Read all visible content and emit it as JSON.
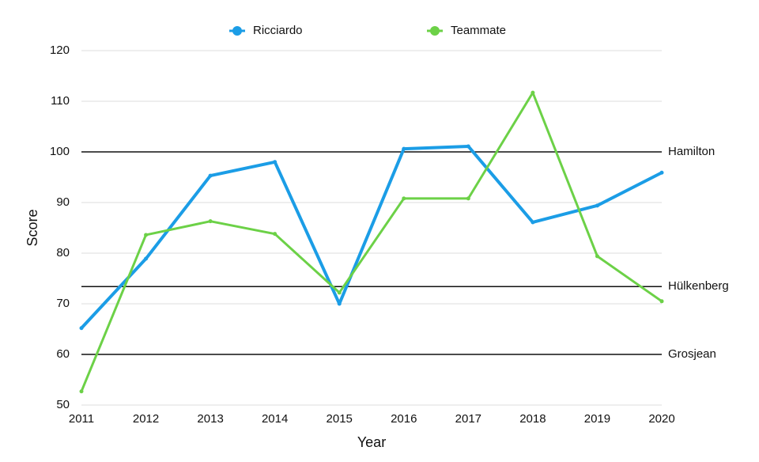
{
  "chart_data": {
    "type": "line",
    "x_label": "Year",
    "y_label": "Score",
    "x": [
      2011,
      2012,
      2013,
      2014,
      2015,
      2016,
      2017,
      2018,
      2019,
      2020
    ],
    "xlim": [
      2011,
      2020
    ],
    "xticks": [
      2011,
      2012,
      2013,
      2014,
      2015,
      2016,
      2017,
      2018,
      2019,
      2020
    ],
    "ylim": [
      50,
      120
    ],
    "yticks": [
      50,
      60,
      70,
      80,
      90,
      100,
      110,
      120
    ],
    "grid": true,
    "legend": "top",
    "series": [
      {
        "name": "Ricciardo",
        "color": "#1b9de6",
        "values": [
          65.2,
          78.9,
          95.3,
          98,
          70,
          100.6,
          101.1,
          86.1,
          89.4,
          95.9
        ]
      },
      {
        "name": "Teammate",
        "color": "#6cd147",
        "values": [
          52.7,
          83.6,
          86.3,
          83.8,
          72.2,
          90.8,
          90.8,
          111.7,
          79.4,
          70.5
        ]
      }
    ],
    "reference_lines": [
      {
        "label": "Hamilton",
        "value": 100
      },
      {
        "label": "Hülkenberg",
        "value": 73.4
      },
      {
        "label": "Grosjean",
        "value": 60
      }
    ]
  }
}
